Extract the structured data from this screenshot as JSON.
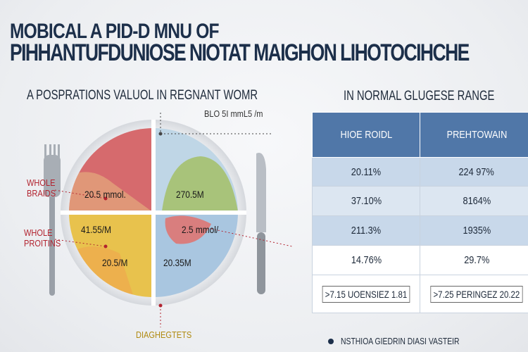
{
  "header": {
    "title_line1": "MOBICAL A PID-D MNU OF",
    "title_line2": "PIHHANTUFDUNIOSE NIOTAT MAIGHON LIHOTOCIHCHE"
  },
  "left_subtitle": "A POSPRATIONS VALUOL IN REGNANT WOMR",
  "right_subtitle": "IN NORMAL GLUGESE RANGE",
  "plate": {
    "top_callout": "BLO 5I mmL5 /m",
    "labels": {
      "whole_brains": "WHOLE\nBRAIDS",
      "whole_proteins": "WHOLE\nPROITINS"
    },
    "quadrants": {
      "top_left": "20.5 mmol.",
      "top_right": "270.5M",
      "mid_left": "41.55/M",
      "mid_right": "2.5 mmol/",
      "bottom_left": "20.5/M",
      "bottom_right": "20.35M"
    },
    "bottom_label": "DIAGHEGTETS"
  },
  "table": {
    "headers": [
      "HIOE ROIDL",
      "PREHTOWAIN"
    ],
    "rows": [
      [
        "20.11%",
        "224 97%"
      ],
      [
        "37.10%",
        "8164%"
      ],
      [
        "211.3%",
        "1935%"
      ],
      [
        "14.76%",
        "29.7%"
      ]
    ],
    "footer_row": [
      ">7.15 UOENSIEZ 1.81",
      ">7.25 PERINGEZ 20.22"
    ]
  },
  "footer_note": "NSTHIOA GIEDRIN DIASI VASTEIR",
  "colors": {
    "title": "#1c2f4a",
    "table_header": "#5077a8",
    "red_label": "#b2232f",
    "quad_red": "#d66a6d",
    "quad_green": "#a8c37a",
    "quad_yellow": "#e8c24d",
    "quad_blue": "#a9c6e0"
  }
}
